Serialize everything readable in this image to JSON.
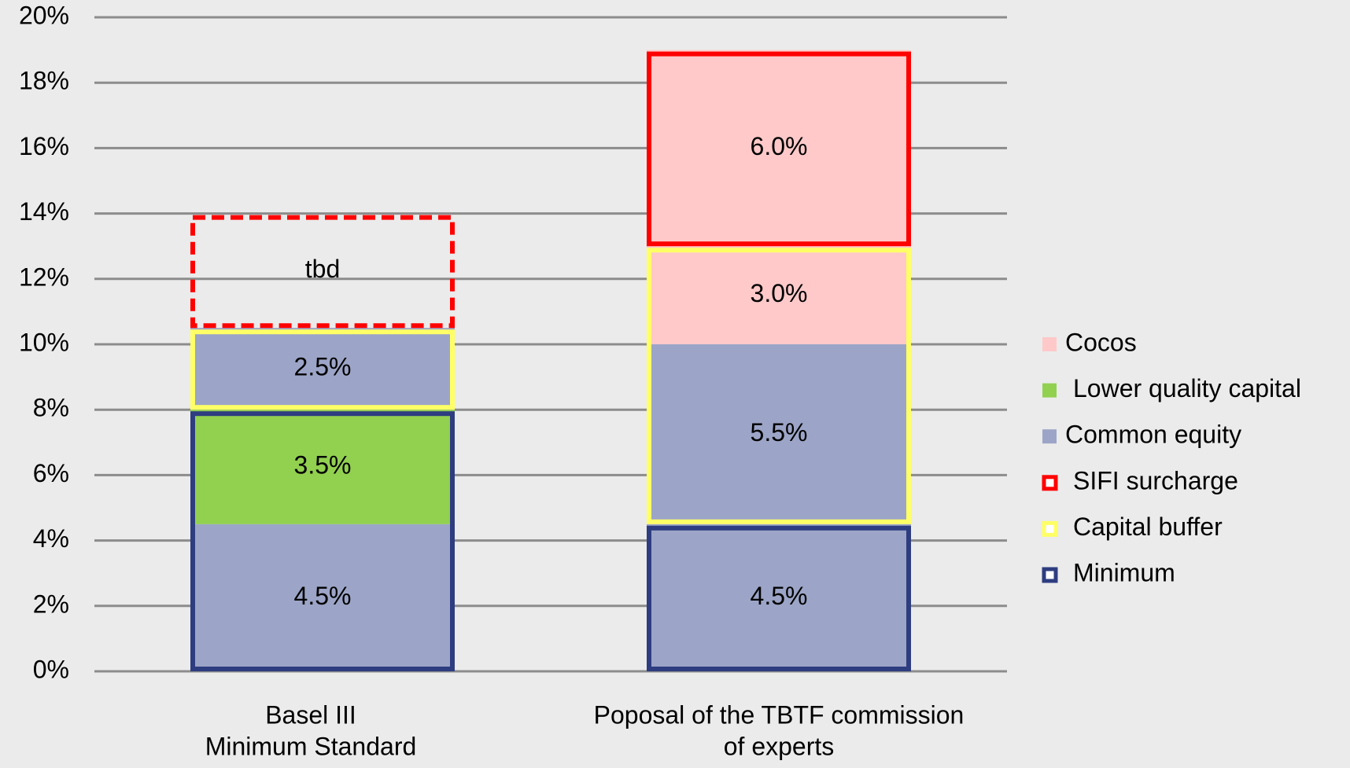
{
  "chart_data": {
    "type": "stacked-outlined-bar",
    "ylim": [
      0,
      20
    ],
    "yticks": [
      {
        "value": 0,
        "label": "0%"
      },
      {
        "value": 2,
        "label": "2%"
      },
      {
        "value": 4,
        "label": "4%"
      },
      {
        "value": 6,
        "label": "6%"
      },
      {
        "value": 8,
        "label": "8%"
      },
      {
        "value": 10,
        "label": "10%"
      },
      {
        "value": 12,
        "label": "12%"
      },
      {
        "value": 14,
        "label": "14%"
      },
      {
        "value": 16,
        "label": "16%"
      },
      {
        "value": 18,
        "label": "18%"
      },
      {
        "value": 20,
        "label": "20%"
      }
    ],
    "grid": true,
    "legend_position": "right",
    "series": [
      {
        "name": "Cocos",
        "color": "#ffc9c9",
        "kind": "fill"
      },
      {
        "name": "Lower quality capital",
        "color": "#92d050",
        "kind": "fill"
      },
      {
        "name": "Common equity",
        "color": "#9ca5c7",
        "kind": "fill"
      },
      {
        "name": "SIFI surcharge",
        "color": "#ff0000",
        "kind": "outline"
      },
      {
        "name": "Capital buffer",
        "color": "#ffff66",
        "kind": "outline"
      },
      {
        "name": "Minimum",
        "color": "#2e3d80",
        "kind": "outline"
      }
    ],
    "stacks": [
      {
        "category": [
          "Basel III",
          "Minimum Standard"
        ],
        "segments": [
          {
            "value": 4.5,
            "label": "4.5%",
            "series": 2,
            "outline": 5
          },
          {
            "value": 3.5,
            "label": "3.5%",
            "series": 1,
            "outline": 5
          },
          {
            "value": 2.5,
            "label": "2.5%",
            "series": 2,
            "outline": 4
          },
          {
            "value": 3.5,
            "label": "tbd",
            "series": null,
            "outline": 3,
            "dashed": true
          }
        ]
      },
      {
        "category": [
          "Poposal of the TBTF commission",
          "of experts"
        ],
        "segments": [
          {
            "value": 4.5,
            "label": "4.5%",
            "series": 2,
            "outline": 5
          },
          {
            "value": 5.5,
            "label": "5.5%",
            "series": 2,
            "outline": 4
          },
          {
            "value": 3.0,
            "label": "3.0%",
            "series": 0,
            "outline": 4
          },
          {
            "value": 6.0,
            "label": "6.0%",
            "series": 0,
            "outline": 3
          }
        ]
      }
    ]
  }
}
